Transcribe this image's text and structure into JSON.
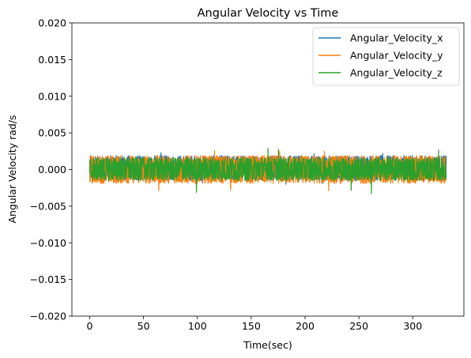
{
  "chart_data": {
    "type": "line",
    "title": "Angular Velocity vs Time",
    "xlabel": "Time(sec)",
    "ylabel": "Angular Velocity rad/s",
    "xlim": [
      -16.5,
      347.5
    ],
    "ylim": [
      -0.02,
      0.02
    ],
    "x_range": [
      0,
      331
    ],
    "x_ticks": [
      0,
      50,
      100,
      150,
      200,
      250,
      300
    ],
    "x_tick_labels": [
      "0",
      "50",
      "100",
      "150",
      "200",
      "250",
      "300"
    ],
    "y_ticks": [
      0.02,
      0.015,
      0.01,
      0.005,
      0.0,
      -0.005,
      -0.01,
      -0.015,
      -0.02
    ],
    "y_tick_labels": [
      "0.020",
      "0.015",
      "0.010",
      "0.005",
      "0.000",
      "−0.005",
      "−0.010",
      "−0.015",
      "−0.020"
    ],
    "grid": false,
    "legend_position": "top-right",
    "series": [
      {
        "name": "Angular_Velocity_x",
        "color": "#1f77b4",
        "noise_band": [
          -0.0015,
          0.0019
        ],
        "peak_max": 0.0023,
        "peak_min": -0.002
      },
      {
        "name": "Angular_Velocity_y",
        "color": "#ff7f0e",
        "noise_band": [
          -0.0019,
          0.0019
        ],
        "peak_max": 0.0026,
        "peak_min": -0.0029
      },
      {
        "name": "Angular_Velocity_z",
        "color": "#2ca02c",
        "noise_band": [
          -0.0015,
          0.0016
        ],
        "peak_max": 0.0029,
        "peak_min": -0.0033
      }
    ]
  }
}
